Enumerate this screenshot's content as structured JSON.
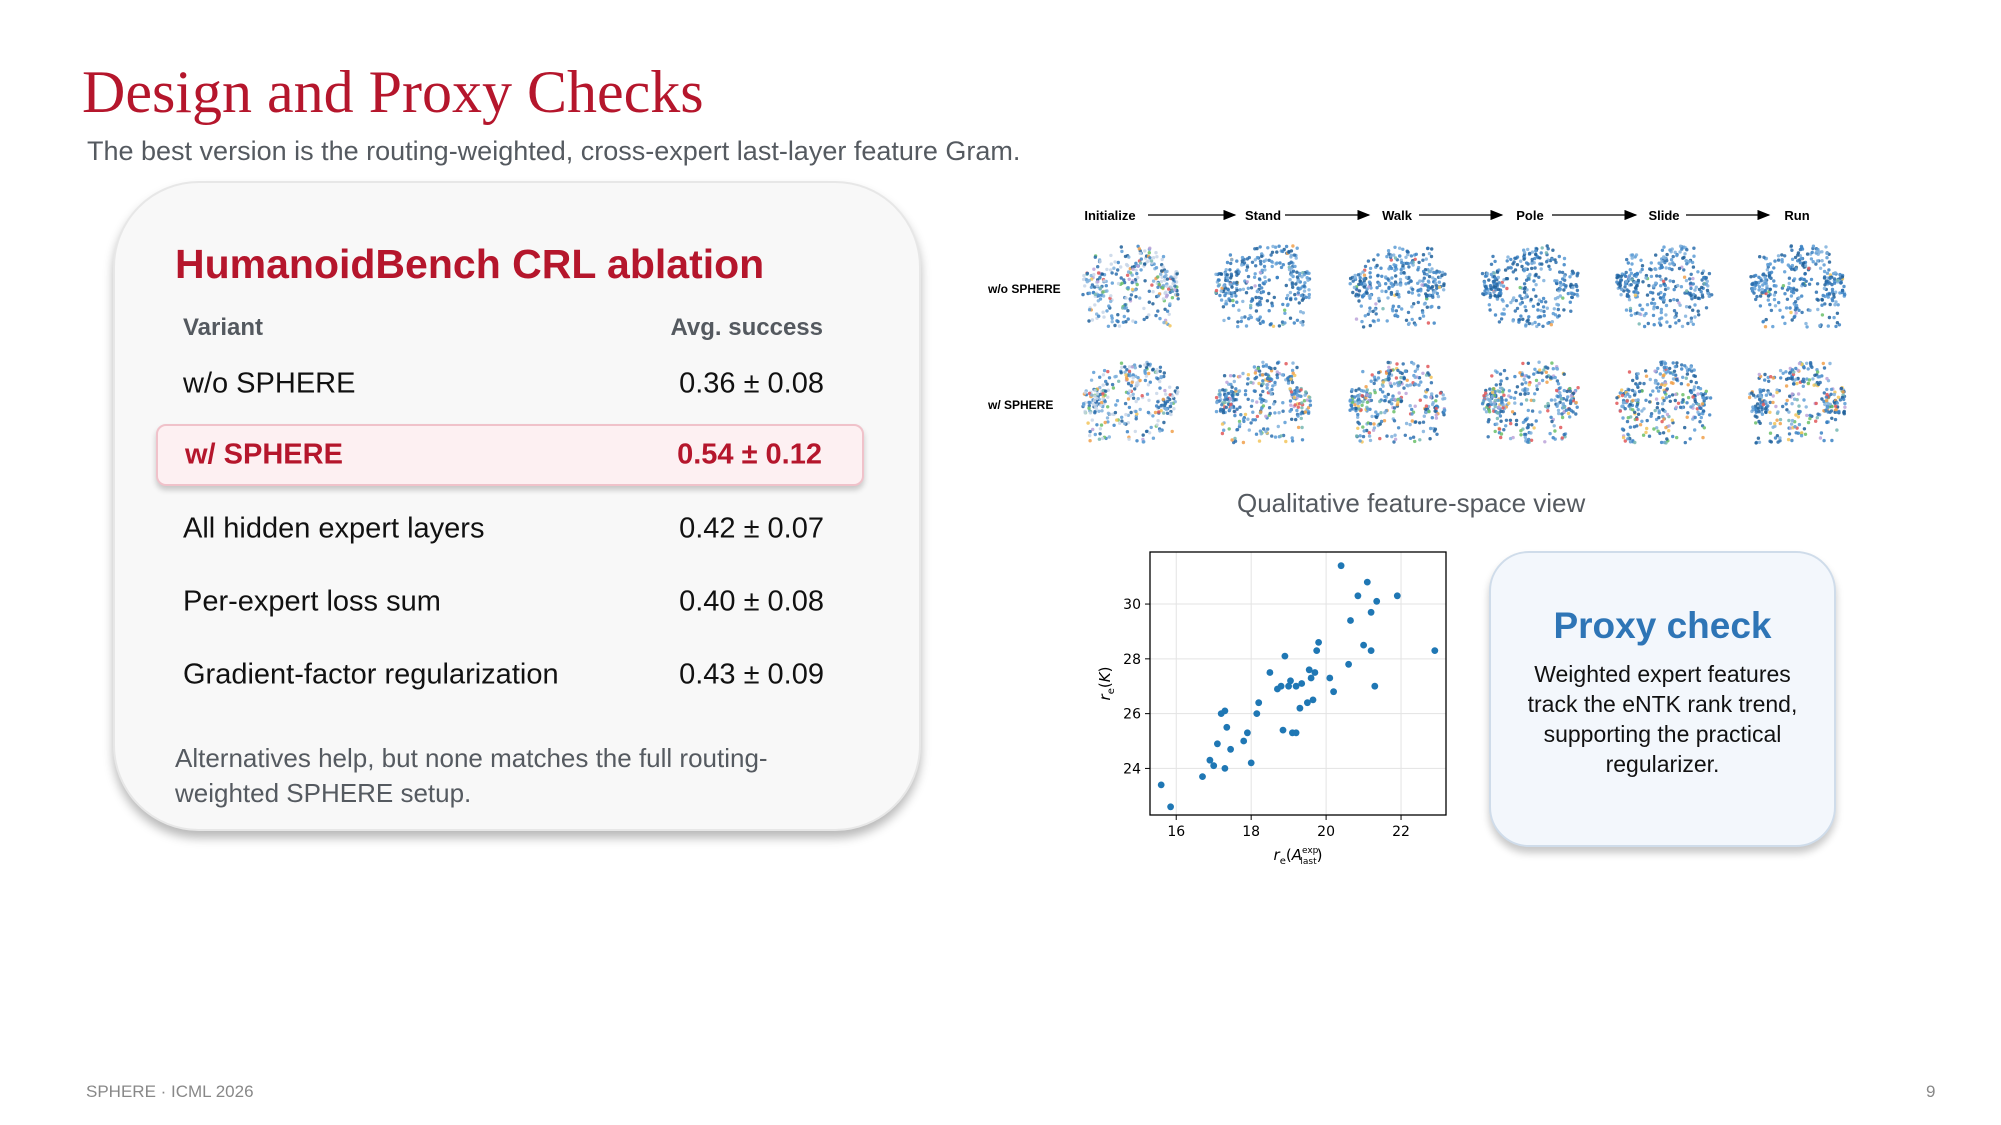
{
  "slide": {
    "title": "Design and Proxy Checks",
    "subtitle": "The best version is the routing-weighted, cross-expert last-layer feature Gram.",
    "footer_left": "SPHERE · ICML 2026",
    "page_number": "9"
  },
  "ablation": {
    "title": "HumanoidBench CRL ablation",
    "col_variant": "Variant",
    "col_success": "Avg. success",
    "rows": [
      {
        "label": "w/o SPHERE",
        "value": "0.36 ± 0.08"
      },
      {
        "label": "w/ SPHERE",
        "value": "0.54 ± 0.12"
      },
      {
        "label": "All hidden expert layers",
        "value": "0.42 ± 0.07"
      },
      {
        "label": "Per-expert loss sum",
        "value": "0.40 ± 0.08"
      },
      {
        "label": "Gradient-factor regularization",
        "value": "0.43 ± 0.09"
      }
    ],
    "note": "Alternatives help, but none matches the full routing-weighted SPHERE setup.",
    "highlight_color": "#b5162c"
  },
  "feature_figure": {
    "stages": [
      "Initialize",
      "Stand",
      "Walk",
      "Pole",
      "Slide",
      "Run"
    ],
    "row_labels": [
      "w/o SPHERE",
      "w/ SPHERE"
    ],
    "caption": "Qualitative feature-space view"
  },
  "chart_data": {
    "type": "scatter",
    "xlabel_main": "r",
    "xlabel_sub": "e",
    "xlabel_arg": "A",
    "xlabel_sup": "exp",
    "xlabel_arg_sub": "last",
    "ylabel_main": "r",
    "ylabel_sub": "e",
    "ylabel_arg": "K",
    "xlim": [
      15.3,
      23.2
    ],
    "ylim": [
      22.3,
      31.9
    ],
    "xticks": [
      16,
      18,
      20,
      22
    ],
    "yticks": [
      24,
      26,
      28,
      30
    ],
    "grid": true,
    "color": "#1f77b4",
    "points": [
      [
        15.6,
        23.4
      ],
      [
        15.85,
        22.6
      ],
      [
        16.7,
        23.7
      ],
      [
        16.9,
        24.3
      ],
      [
        17.0,
        24.1
      ],
      [
        17.1,
        24.9
      ],
      [
        17.2,
        26.0
      ],
      [
        17.3,
        24.0
      ],
      [
        17.3,
        26.1
      ],
      [
        17.35,
        25.5
      ],
      [
        17.45,
        24.7
      ],
      [
        17.8,
        25.0
      ],
      [
        17.9,
        25.3
      ],
      [
        18.0,
        24.2
      ],
      [
        18.15,
        26.0
      ],
      [
        18.2,
        26.4
      ],
      [
        18.5,
        27.5
      ],
      [
        18.7,
        26.9
      ],
      [
        18.8,
        27.0
      ],
      [
        18.85,
        25.4
      ],
      [
        18.9,
        28.1
      ],
      [
        19.0,
        27.0
      ],
      [
        19.05,
        27.2
      ],
      [
        19.1,
        25.3
      ],
      [
        19.2,
        25.3
      ],
      [
        19.2,
        27.0
      ],
      [
        19.3,
        26.2
      ],
      [
        19.35,
        27.1
      ],
      [
        19.5,
        26.4
      ],
      [
        19.55,
        27.6
      ],
      [
        19.6,
        27.3
      ],
      [
        19.65,
        26.5
      ],
      [
        19.7,
        27.5
      ],
      [
        19.75,
        28.3
      ],
      [
        19.8,
        28.6
      ],
      [
        20.1,
        27.3
      ],
      [
        20.2,
        26.8
      ],
      [
        20.4,
        31.4
      ],
      [
        20.6,
        27.8
      ],
      [
        20.65,
        29.4
      ],
      [
        20.85,
        30.3
      ],
      [
        21.0,
        28.5
      ],
      [
        21.1,
        30.8
      ],
      [
        21.2,
        29.7
      ],
      [
        21.2,
        28.3
      ],
      [
        21.3,
        27.0
      ],
      [
        21.35,
        30.1
      ],
      [
        21.9,
        30.3
      ],
      [
        22.9,
        28.3
      ]
    ]
  }
}
